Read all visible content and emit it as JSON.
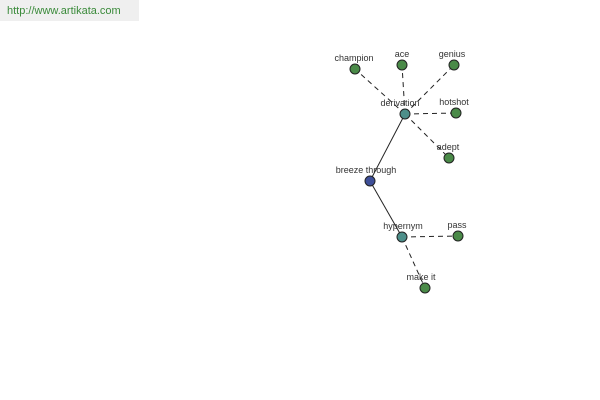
{
  "header": {
    "url": "http://www.artikata.com"
  },
  "nodes": [
    {
      "label": "breeze through"
    },
    {
      "label": "derivation"
    },
    {
      "label": "hypernym"
    },
    {
      "label": "champion"
    },
    {
      "label": "ace"
    },
    {
      "label": "genius"
    },
    {
      "label": "hotshot"
    },
    {
      "label": "adept"
    },
    {
      "label": "pass"
    },
    {
      "label": "make it"
    }
  ]
}
